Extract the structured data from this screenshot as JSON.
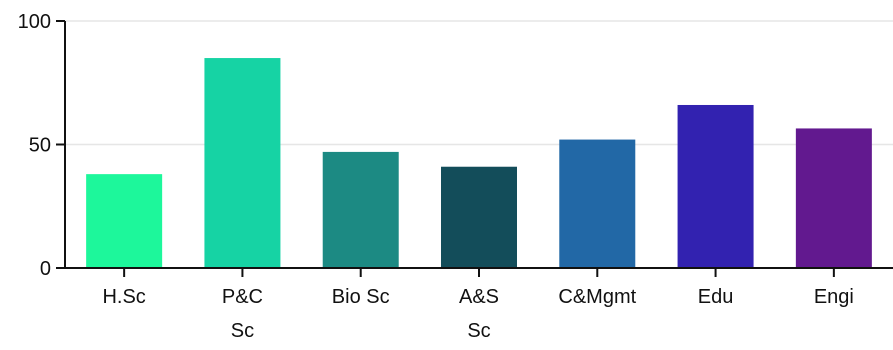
{
  "chart_data": {
    "type": "bar",
    "title": "",
    "xlabel": "",
    "ylabel": "",
    "categories": [
      [
        "H.Sc"
      ],
      [
        "P&C",
        "Sc"
      ],
      [
        "Bio Sc"
      ],
      [
        "A&S",
        "Sc"
      ],
      [
        "C&Mgmt"
      ],
      [
        "Edu"
      ],
      [
        "Engi"
      ]
    ],
    "values": [
      38,
      85,
      47,
      41,
      52,
      66,
      56.5
    ],
    "colors": [
      "#1df79b",
      "#16d3a4",
      "#1c8a83",
      "#134d5a",
      "#2268a6",
      "#3222b0",
      "#62198f"
    ],
    "ylim": [
      0,
      100
    ],
    "yticks": [
      0,
      50,
      100
    ],
    "grid": true,
    "legend": "none"
  }
}
